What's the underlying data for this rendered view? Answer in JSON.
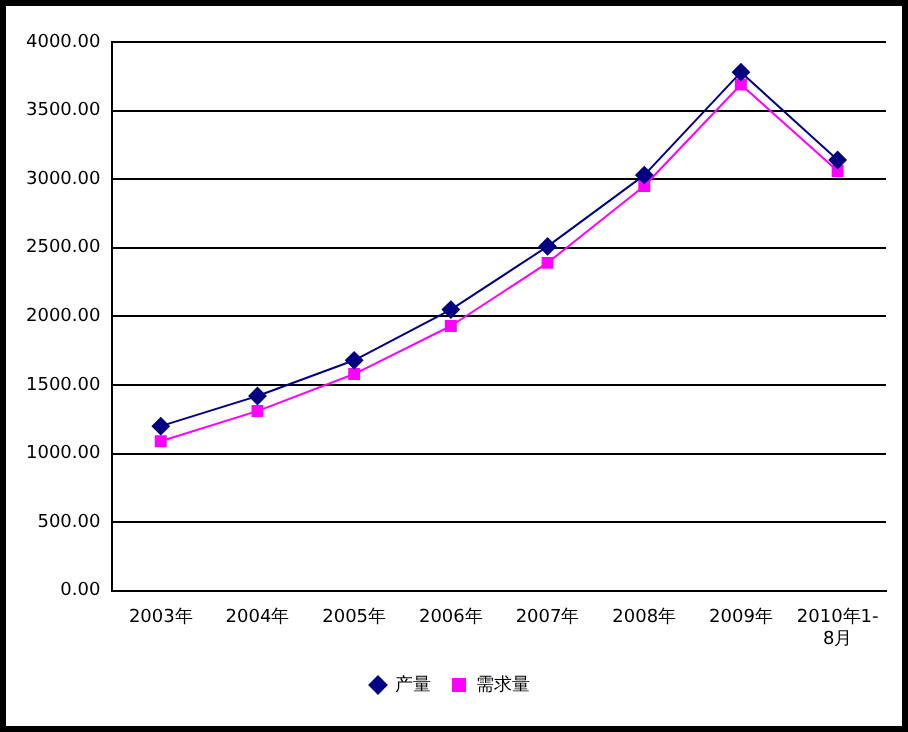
{
  "chart_data": {
    "type": "line",
    "categories": [
      "2003年",
      "2004年",
      "2005年",
      "2006年",
      "2007年",
      "2008年",
      "2009年",
      "2010年1-8月"
    ],
    "series": [
      {
        "name": "产量",
        "color": "#000080",
        "marker": "diamond",
        "values": [
          1200,
          1420,
          1680,
          2050,
          2510,
          3030,
          3780,
          3140
        ]
      },
      {
        "name": "需求量",
        "color": "#ff00ff",
        "marker": "square",
        "values": [
          1090,
          1310,
          1580,
          1930,
          2390,
          2950,
          3690,
          3060
        ]
      }
    ],
    "ylim": [
      0,
      4000
    ],
    "yticks": [
      {
        "value": 0,
        "label": "0.00"
      },
      {
        "value": 500,
        "label": "500.00"
      },
      {
        "value": 1000,
        "label": "1000.00"
      },
      {
        "value": 1500,
        "label": "1500.00"
      },
      {
        "value": 2000,
        "label": "2000.00"
      },
      {
        "value": 2500,
        "label": "2500.00"
      },
      {
        "value": 3000,
        "label": "3000.00"
      },
      {
        "value": 3500,
        "label": "3500.00"
      },
      {
        "value": 4000,
        "label": "4000.00"
      }
    ],
    "grid": "y",
    "legend": "bottom",
    "line_style": "solid"
  }
}
